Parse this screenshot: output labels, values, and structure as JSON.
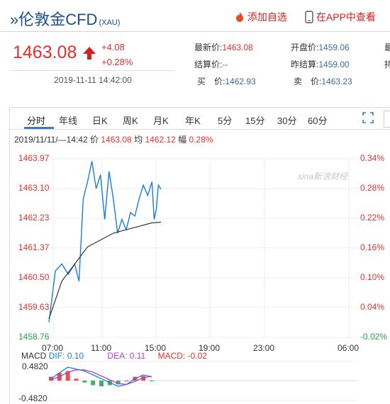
{
  "header": {
    "title": "»伦敦金CFD",
    "subtitle": "(XAU)",
    "follow_label": "添加自选",
    "app_label": "在APP中查看"
  },
  "quote": {
    "price": "1463.08",
    "change": "+4.08",
    "change_pct": "+0.28%",
    "datetime": "2019-11-11 14:42:00",
    "latest_label": "最新价:",
    "latest_value": "1463.08",
    "open_label": "开盘价:",
    "open_value": "1459.06",
    "settle_label": "结算价:",
    "settle_value": "--",
    "prev_close_label": "昨结算:",
    "prev_close_value": "1459.00",
    "bid_label": "买　价:",
    "bid_value": "1462.93",
    "ask_label": "卖　价:",
    "ask_value": "1463.23",
    "extra1": "最",
    "extra2": "持"
  },
  "tabs": [
    "分时",
    "年线",
    "日K",
    "周K",
    "月K",
    "年K",
    "5分",
    "15分",
    "30分",
    "60分"
  ],
  "info_line": {
    "time": "2019/11/11/—14:42",
    "price_label": "价",
    "price": "1463.08",
    "avg_label": "均",
    "avg": "1462.12",
    "amp_label": "幅",
    "amp": "0.28%"
  },
  "watermark": "sina新浪财经",
  "colors": {
    "up": "#e23030",
    "down": "#21a34a",
    "price_line": "#1a7fd1",
    "avg_line": "#333333",
    "accent": "#3f76c7"
  },
  "chart_data": {
    "type": "line",
    "y_ticks": [
      "1463.97",
      "1463.10",
      "1462.23",
      "1461.37",
      "1460.50",
      "1459.63",
      "1458.76"
    ],
    "pct_ticks": [
      "0.34%",
      "0.28%",
      "0.22%",
      "0.16%",
      "0.10%",
      "0.04%",
      "-0.02%"
    ],
    "x_ticks": [
      "07:00",
      "11:00",
      "15:00",
      "19:00",
      "23:00",
      "06:00"
    ],
    "ylim": [
      1458.76,
      1463.97
    ],
    "series": [
      {
        "name": "价",
        "x": [
          "06:00",
          "06:30",
          "07:00",
          "07:30",
          "08:00",
          "08:20",
          "08:40",
          "09:00",
          "09:20",
          "09:40",
          "10:00",
          "10:20",
          "10:40",
          "11:00",
          "11:20",
          "11:40",
          "12:00",
          "12:20",
          "12:40",
          "13:00",
          "13:20",
          "13:40",
          "14:00",
          "14:10",
          "14:20",
          "14:30",
          "14:42"
        ],
        "values": [
          1459.2,
          1460.7,
          1460.9,
          1460.6,
          1460.9,
          1460.4,
          1462.8,
          1463.3,
          1463.9,
          1463.1,
          1463.5,
          1462.2,
          1463.6,
          1462.8,
          1461.8,
          1462.2,
          1461.9,
          1462.4,
          1462.3,
          1462.8,
          1463.2,
          1462.9,
          1463.3,
          1462.2,
          1462.5,
          1463.2,
          1463.08
        ]
      },
      {
        "name": "均",
        "x": [
          "06:00",
          "07:00",
          "08:00",
          "09:00",
          "10:00",
          "11:00",
          "12:00",
          "13:00",
          "14:00",
          "14:42"
        ],
        "values": [
          1459.3,
          1460.4,
          1460.9,
          1461.4,
          1461.6,
          1461.8,
          1461.9,
          1462.0,
          1462.1,
          1462.12
        ]
      }
    ]
  },
  "macd": {
    "label": "MACD",
    "dif_label": "DIF:",
    "dif": "0.10",
    "dea_label": "DEA:",
    "dea": "0.11",
    "macd_label": "MACD:",
    "macd_value": "-0.02",
    "y_top": "0.4820",
    "y_bottom": "-0.4820",
    "ylim": [
      -0.482,
      0.482
    ],
    "dif_values": [
      0.05,
      0.2,
      0.35,
      0.3,
      0.25,
      0.15,
      0.05,
      -0.05,
      -0.15,
      -0.1,
      0.05,
      0.15,
      0.1
    ],
    "dea_values": [
      0.02,
      0.1,
      0.22,
      0.28,
      0.28,
      0.22,
      0.12,
      0.02,
      -0.08,
      -0.1,
      -0.02,
      0.08,
      0.11
    ],
    "hist_values": [
      0.1,
      0.2,
      0.25,
      0.05,
      -0.05,
      -0.12,
      -0.15,
      -0.12,
      -0.1,
      0.0,
      0.1,
      0.12,
      -0.02
    ]
  }
}
